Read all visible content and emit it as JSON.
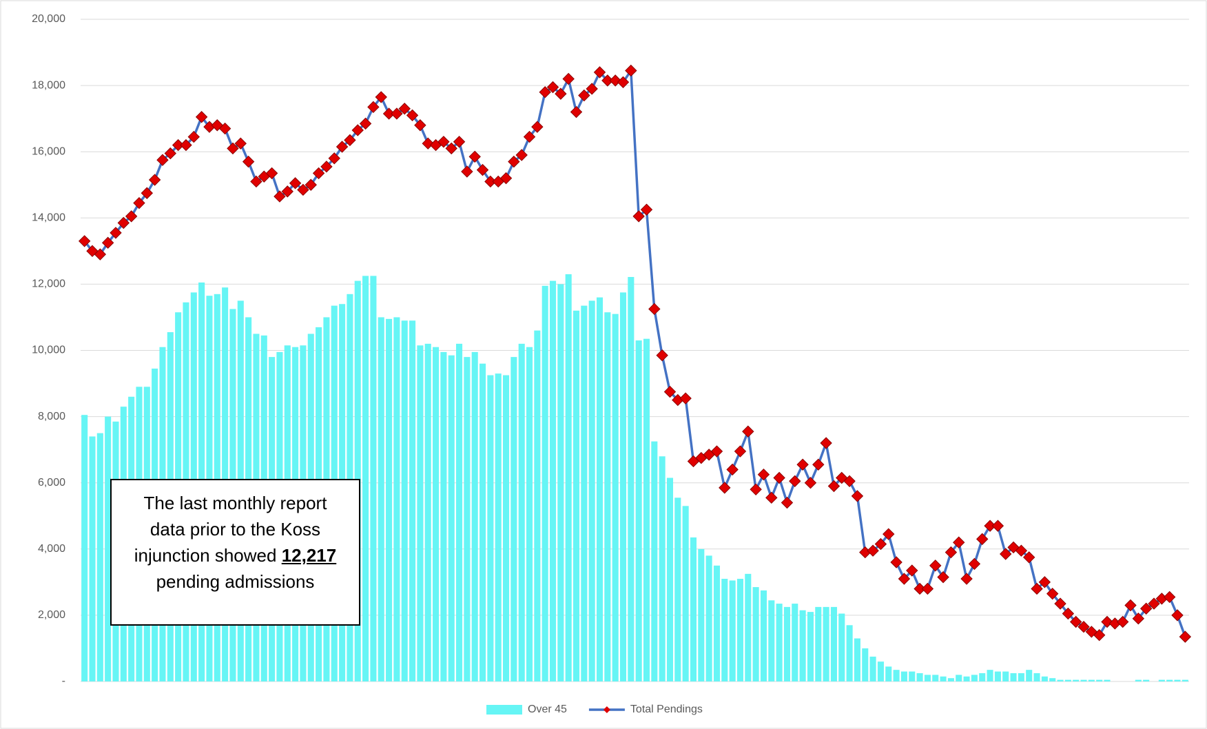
{
  "chart_data": {
    "type": "bar-line",
    "categories": [
      null,
      null,
      null,
      null,
      null,
      null,
      null,
      null,
      null,
      null,
      null,
      null,
      null,
      null,
      null,
      null,
      null,
      null,
      null,
      null,
      null,
      null,
      null,
      null,
      null,
      null,
      null,
      null,
      null,
      null,
      null,
      null,
      null,
      null,
      null,
      null,
      null,
      null,
      null,
      null,
      null,
      null,
      null,
      null,
      null,
      null,
      null,
      null,
      null,
      null,
      null,
      null,
      null,
      null,
      null,
      null,
      null,
      null,
      null,
      null,
      null,
      null,
      null,
      null,
      null,
      null,
      null,
      null,
      null,
      null,
      null,
      null,
      null,
      null,
      null,
      null,
      null,
      null,
      null,
      null,
      null,
      null,
      null,
      null,
      null,
      null,
      null,
      null,
      null,
      null,
      null,
      null,
      null,
      null,
      null,
      null,
      null,
      null,
      null,
      null,
      null,
      null,
      null,
      null,
      null,
      null,
      null,
      null,
      null,
      null,
      null,
      null,
      null,
      null,
      null,
      null,
      null,
      null,
      null,
      null,
      null,
      null,
      null,
      null,
      null,
      null,
      null,
      null,
      null,
      null,
      null,
      null,
      null,
      null,
      null,
      null,
      null,
      null,
      null,
      null,
      null,
      null
    ],
    "series": [
      {
        "name": "Over 45",
        "type": "bar",
        "color": "#66f5f5",
        "values": [
          8050,
          7400,
          7500,
          8000,
          7850,
          8300,
          8600,
          8900,
          8900,
          9450,
          10100,
          10550,
          11150,
          11450,
          11750,
          12050,
          11650,
          11700,
          11900,
          11250,
          11500,
          11000,
          10500,
          10450,
          9800,
          9950,
          10150,
          10100,
          10150,
          10500,
          10700,
          11000,
          11350,
          11400,
          11700,
          12100,
          12250,
          12250,
          11000,
          10950,
          11000,
          10900,
          10900,
          10150,
          10200,
          10100,
          9950,
          9850,
          10200,
          9800,
          9950,
          9600,
          9250,
          9300,
          9250,
          9800,
          10200,
          10100,
          10600,
          11950,
          12100,
          12000,
          12300,
          11200,
          11350,
          11500,
          11600,
          11150,
          11100,
          11750,
          12217,
          10300,
          10350,
          7250,
          6800,
          6150,
          5550,
          5300,
          4350,
          4000,
          3800,
          3500,
          3100,
          3050,
          3100,
          3250,
          2850,
          2750,
          2450,
          2350,
          2250,
          2350,
          2150,
          2100,
          2250,
          2250,
          2250,
          2050,
          1700,
          1300,
          1000,
          750,
          600,
          450,
          350,
          300,
          300,
          250,
          200,
          200,
          150,
          100,
          200,
          150,
          200,
          250,
          350,
          300,
          300,
          250,
          250,
          350,
          250,
          150,
          100,
          50,
          50,
          50,
          50,
          50,
          50,
          50,
          0,
          0,
          0,
          50,
          50,
          0,
          50,
          50,
          50,
          50
        ]
      },
      {
        "name": "Total Pendings",
        "type": "line",
        "color": "#4472c4",
        "marker_color": "#e00000",
        "values": [
          13300,
          13000,
          12900,
          13250,
          13550,
          13850,
          14050,
          14450,
          14750,
          15150,
          15750,
          15950,
          16200,
          16200,
          16450,
          17050,
          16750,
          16800,
          16700,
          16100,
          16250,
          15700,
          15100,
          15250,
          15350,
          14650,
          14800,
          15050,
          14850,
          15000,
          15350,
          15550,
          15800,
          16150,
          16350,
          16650,
          16850,
          17350,
          17650,
          17150,
          17150,
          17300,
          17100,
          16800,
          16250,
          16200,
          16300,
          16100,
          16300,
          15400,
          15850,
          15450,
          15100,
          15100,
          15200,
          15700,
          15900,
          16450,
          16750,
          17800,
          17950,
          17750,
          18200,
          17200,
          17700,
          17900,
          18400,
          18150,
          18150,
          18100,
          18450,
          14050,
          14250,
          11250,
          9850,
          8750,
          8500,
          8550,
          6650,
          6750,
          6850,
          6950,
          5850,
          6400,
          6950,
          7550,
          5800,
          6250,
          5550,
          6150,
          5400,
          6050,
          6550,
          6000,
          6550,
          7200,
          5900,
          6150,
          6050,
          5600,
          3900,
          3950,
          4150,
          4450,
          3600,
          3100,
          3350,
          2800,
          2800,
          3500,
          3150,
          3900,
          4200,
          3100,
          3550,
          4300,
          4700,
          4700,
          3850,
          4050,
          3950,
          3750,
          2800,
          3000,
          2650,
          2350,
          2050,
          1800,
          1650,
          1500,
          1400,
          1800,
          1750,
          1800,
          2300,
          1900,
          2200,
          2350,
          2500,
          2550,
          2000,
          1350
        ]
      }
    ],
    "ylim": [
      0,
      20000
    ],
    "yticks": [
      {
        "value": 0,
        "label": "-"
      },
      {
        "value": 2000,
        "label": "2,000"
      },
      {
        "value": 4000,
        "label": "4,000"
      },
      {
        "value": 6000,
        "label": "6,000"
      },
      {
        "value": 8000,
        "label": "8,000"
      },
      {
        "value": 10000,
        "label": "10,000"
      },
      {
        "value": 12000,
        "label": "12,000"
      },
      {
        "value": 14000,
        "label": "14,000"
      },
      {
        "value": 16000,
        "label": "16,000"
      },
      {
        "value": 18000,
        "label": "18,000"
      },
      {
        "value": 20000,
        "label": "20,000"
      }
    ],
    "grid": true,
    "legend": "bottom",
    "annotation": {
      "text_before": "The last monthly report data prior to the Koss injunction showed",
      "highlight": "12,217",
      "text_after": "pending admissions"
    }
  }
}
